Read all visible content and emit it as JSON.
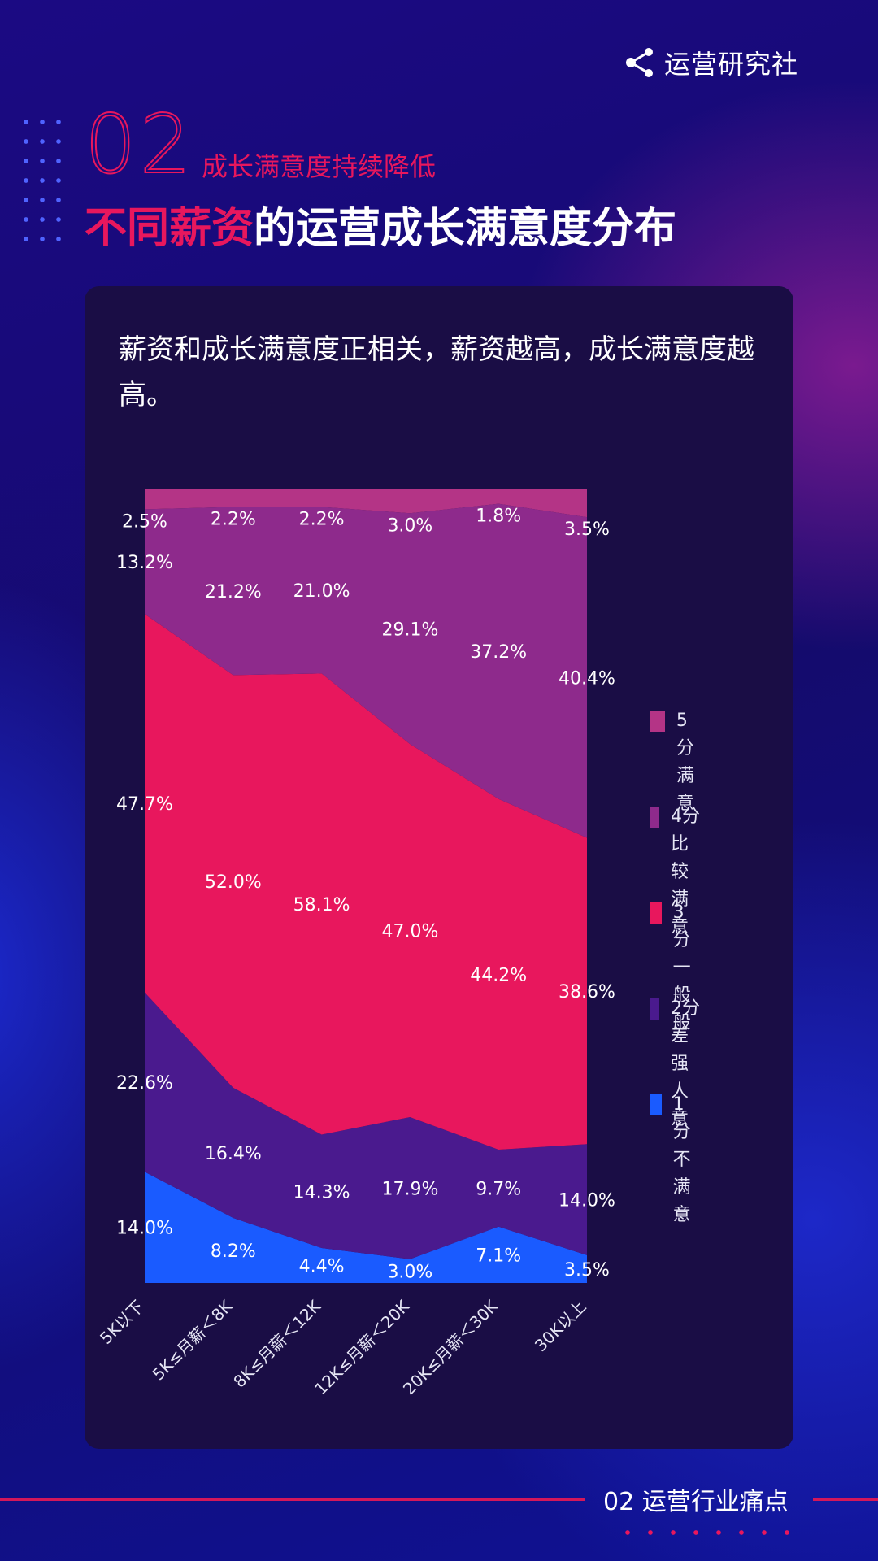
{
  "brand": {
    "name": "运营研究社",
    "logo_icon": "share-nodes-icon"
  },
  "section": {
    "number": "02",
    "subtitle": "成长满意度持续降低"
  },
  "title": {
    "highlight": "不同薪资",
    "rest": "的运营成长满意度分布"
  },
  "description": "薪资和成长满意度正相关，薪资越高，成长满意度越高。",
  "colors": {
    "accent": "#e8175d"
  },
  "chart_data": {
    "type": "area",
    "stacked": true,
    "normalized": true,
    "categories": [
      "5K以下",
      "5K≤月薪＜8K",
      "8K≤月薪＜12K",
      "12K≤月薪＜20K",
      "20K≤月薪＜30K",
      "30K以上"
    ],
    "series": [
      {
        "name": "1分",
        "desc": "不满意",
        "color": "#1a5bff",
        "values": [
          14.0,
          8.2,
          4.4,
          3.0,
          7.1,
          3.5
        ],
        "labels": [
          "14.0%",
          "8.2%",
          "4.4%",
          "3.0%",
          "7.1%",
          "3.5%"
        ]
      },
      {
        "name": "2分",
        "desc": "差强人意",
        "color": "#4a1a8e",
        "values": [
          22.6,
          16.4,
          14.3,
          17.9,
          9.7,
          14.0
        ],
        "labels": [
          "22.6%",
          "16.4%",
          "14.3%",
          "17.9%",
          "9.7%",
          "14.0%"
        ]
      },
      {
        "name": "3分",
        "desc": "一般般",
        "color": "#e8175d",
        "values": [
          47.7,
          52.0,
          58.1,
          47.0,
          44.2,
          38.6
        ],
        "labels": [
          "47.7%",
          "52.0%",
          "58.1%",
          "47.0%",
          "44.2%",
          "38.6%"
        ]
      },
      {
        "name": "4分",
        "desc": "比较满意",
        "color": "#8e2a8c",
        "values": [
          13.2,
          21.2,
          21.0,
          29.1,
          37.2,
          40.4
        ],
        "labels": [
          "13.2%",
          "21.2%",
          "21.0%",
          "29.1%",
          "37.2%",
          "40.4%"
        ]
      },
      {
        "name": "5分",
        "desc": "满意",
        "color": "#b43486",
        "values": [
          2.5,
          2.2,
          2.2,
          3.0,
          1.8,
          3.5
        ],
        "labels": [
          "2.5%",
          "2.2%",
          "2.2%",
          "3.0%",
          "1.8%",
          "3.5%"
        ]
      }
    ]
  },
  "footer": {
    "text": "02 运营行业痛点"
  }
}
